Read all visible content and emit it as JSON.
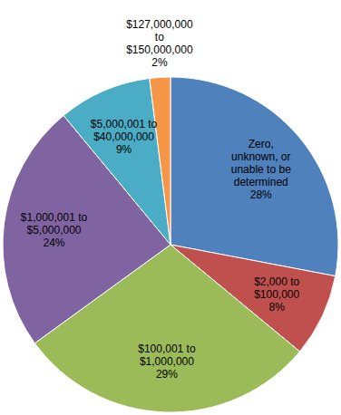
{
  "chart_data": {
    "type": "pie",
    "categories": [
      "Zero, unknown, or unable to be determined",
      "$2,000 to $100,000",
      "$100,001 to $1,000,000",
      "$1,000,001 to $5,000,000",
      "$5,000,001 to $40,000,000",
      "$127,000,000 to $150,000,000"
    ],
    "values": [
      28,
      8,
      29,
      24,
      9,
      2
    ],
    "value_labels": [
      "28%",
      "8%",
      "29%",
      "24%",
      "9%",
      "2%"
    ],
    "colors": [
      "#4f81bd",
      "#c0504d",
      "#9bbb59",
      "#8064a2",
      "#4bacc6",
      "#f79646"
    ],
    "data_labels": true
  }
}
